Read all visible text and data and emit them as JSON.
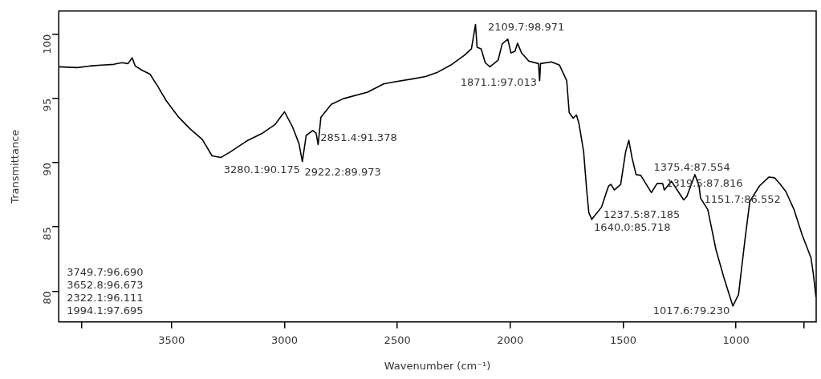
{
  "chart_data": {
    "type": "line",
    "xlabel": "Wavenumber (cm⁻¹)",
    "ylabel": "Transmittance",
    "xlim": [
      4000,
      645
    ],
    "ylim": [
      77.6,
      101.8
    ],
    "xticks": [
      {
        "value": 3900,
        "label": null
      },
      3500,
      3000,
      2500,
      2000,
      1500,
      1000,
      {
        "value": 700,
        "label": null
      }
    ],
    "yticks": [
      80,
      85,
      90,
      95,
      100
    ],
    "grid": false,
    "legend": false,
    "marker": "none",
    "line_style": "solid",
    "series": [
      {
        "color": "#000000",
        "x": [
          3999,
          3918,
          3864,
          3811,
          3757,
          3721,
          3693,
          3675,
          3661,
          3632,
          3596,
          3561,
          3525,
          3471,
          3418,
          3364,
          3321,
          3282,
          3239,
          3168,
          3096,
          3043,
          3000,
          2964,
          2936,
          2921,
          2904,
          2875,
          2860,
          2851,
          2839,
          2793,
          2739,
          2632,
          2561,
          2525,
          2436,
          2375,
          2325,
          2264,
          2204,
          2172,
          2154,
          2147,
          2129,
          2111,
          2090,
          2054,
          2036,
          2011,
          1997,
          1979,
          1968,
          1950,
          1918,
          1875,
          1870,
          1866,
          1818,
          1782,
          1750,
          1739,
          1721,
          1707,
          1696,
          1675,
          1661,
          1652,
          1639,
          1596,
          1571,
          1564,
          1554,
          1539,
          1511,
          1489,
          1475,
          1461,
          1443,
          1422,
          1375,
          1350,
          1325,
          1318,
          1286,
          1232,
          1218,
          1182,
          1164,
          1157,
          1125,
          1089,
          1054,
          1014,
          989,
          961,
          939,
          896,
          854,
          829,
          804,
          779,
          743,
          707,
          668,
          657,
          646
        ],
        "values": [
          97.46,
          97.4,
          97.52,
          97.59,
          97.65,
          97.78,
          97.71,
          98.16,
          97.52,
          97.2,
          96.89,
          95.93,
          94.85,
          93.58,
          92.63,
          91.8,
          90.53,
          90.4,
          90.85,
          91.68,
          92.31,
          92.95,
          93.96,
          92.76,
          91.49,
          90.09,
          92.12,
          92.5,
          92.3,
          91.4,
          93.52,
          94.54,
          94.98,
          95.49,
          96.13,
          96.25,
          96.51,
          96.7,
          97.01,
          97.59,
          98.35,
          98.86,
          100.76,
          98.98,
          98.86,
          97.78,
          97.46,
          97.97,
          99.24,
          99.62,
          98.54,
          98.67,
          99.3,
          98.54,
          97.9,
          97.71,
          96.38,
          97.71,
          97.84,
          97.59,
          96.38,
          93.9,
          93.46,
          93.71,
          93.07,
          90.85,
          87.74,
          86.11,
          85.58,
          86.53,
          87.87,
          88.19,
          88.31,
          87.87,
          88.31,
          90.85,
          91.74,
          90.41,
          89.07,
          89.01,
          87.67,
          88.37,
          88.37,
          87.87,
          88.56,
          87.1,
          87.36,
          89.07,
          88.19,
          87.23,
          86.34,
          83.23,
          81.07,
          78.84,
          79.73,
          83.93,
          86.98,
          88.19,
          88.88,
          88.82,
          88.31,
          87.74,
          86.34,
          84.37,
          82.59,
          81.26,
          79.54
        ]
      }
    ],
    "annotations": [
      "3749.7:96.690",
      "3652.8:96.673",
      {
        "text": "3280.1:90.175",
        "x": 3280.1,
        "y": 90.175
      },
      {
        "text": "2922.2:89.973",
        "x": 2922.2,
        "y": 89.973
      },
      {
        "text": "2851.4:91.378",
        "x": 2851.4,
        "y": 91.378
      },
      "2322.1:96.111",
      {
        "text": "2109.7:98.971",
        "x": 2109.7,
        "y": 98.971
      },
      "1994.1:97.695",
      {
        "text": "1871.1:97.013",
        "x": 1871.1,
        "y": 97.013
      },
      {
        "text": "1640.0:85.718",
        "x": 1640.0,
        "y": 85.718
      },
      {
        "text": "1375.4:87.554",
        "x": 1375.4,
        "y": 87.554
      },
      {
        "text": "1319.5:87.816",
        "x": 1319.5,
        "y": 87.816
      },
      {
        "text": "1237.5:87.185",
        "x": 1237.5,
        "y": 87.185
      },
      {
        "text": "1151.7:86.552",
        "x": 1151.7,
        "y": 86.552
      },
      {
        "text": "1017.6:79.230",
        "x": 1017.6,
        "y": 79.23
      }
    ]
  }
}
